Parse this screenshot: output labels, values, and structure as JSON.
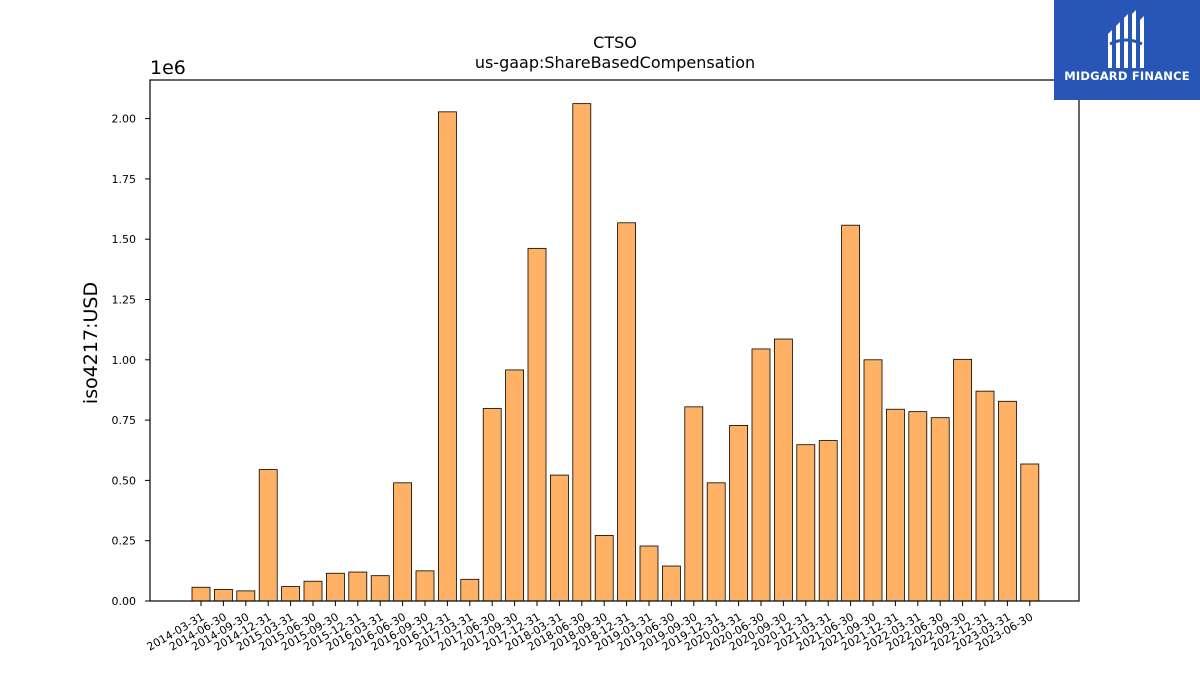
{
  "chart_data": {
    "type": "bar",
    "title": "CTSO",
    "subtitle": "us-gaap:ShareBasedCompensation",
    "ylabel": "iso4217:USD",
    "xlabel": "",
    "y_exponent_label": "1e6",
    "ylim": [
      0,
      2160000
    ],
    "yticks": [
      "0.00",
      "0.25",
      "0.50",
      "0.75",
      "1.00",
      "1.25",
      "1.50",
      "1.75",
      "2.00"
    ],
    "ytick_values": [
      0,
      250000,
      500000,
      750000,
      1000000,
      1250000,
      1500000,
      1750000,
      2000000
    ],
    "bar_color": "#ffb266",
    "grid": false,
    "categories": [
      "2014-03-31",
      "2014-06-30",
      "2014-09-30",
      "2014-12-31",
      "2015-03-31",
      "2015-06-30",
      "2015-09-30",
      "2015-12-31",
      "2016-03-31",
      "2016-06-30",
      "2016-09-30",
      "2016-12-31",
      "2017-03-31",
      "2017-06-30",
      "2017-09-30",
      "2017-12-31",
      "2018-03-31",
      "2018-06-30",
      "2018-09-30",
      "2018-12-31",
      "2019-03-31",
      "2019-06-30",
      "2019-09-30",
      "2019-12-31",
      "2020-03-31",
      "2020-06-30",
      "2020-09-30",
      "2020-12-31",
      "2021-03-31",
      "2021-06-30",
      "2021-09-30",
      "2021-12-31",
      "2022-03-31",
      "2022-06-30",
      "2022-09-30",
      "2022-12-31",
      "2023-03-31",
      "2023-06-30"
    ],
    "values": [
      57000,
      48000,
      42000,
      545000,
      60000,
      82000,
      115000,
      120000,
      105000,
      490000,
      125000,
      2028000,
      90000,
      798000,
      958000,
      1462000,
      522000,
      2062000,
      272000,
      1568000,
      228000,
      145000,
      805000,
      490000,
      728000,
      1045000,
      1086000,
      648000,
      665000,
      1558000,
      1000000,
      795000,
      785000,
      760000,
      1002000,
      870000,
      828000,
      568000
    ]
  },
  "logo": {
    "text": "MIDGARD FINANCE"
  }
}
